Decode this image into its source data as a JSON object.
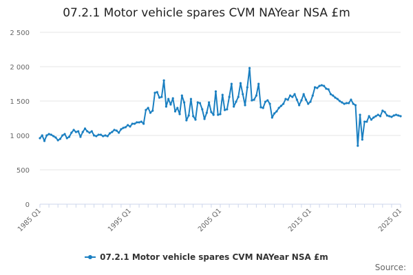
{
  "chart_data": {
    "type": "line",
    "title": "07.2.1 Motor vehicle spares CVM NAYear NSA £m",
    "xlabel": "",
    "ylabel": "",
    "ylim": [
      0,
      2500
    ],
    "y_ticks": [
      0,
      500,
      1000,
      1500,
      2000,
      2500
    ],
    "y_tick_labels": [
      "0",
      "500",
      "1 000",
      "1 500",
      "2 000",
      "2 500"
    ],
    "x_tick_labels": [
      "1985 Q1",
      "1995 Q1",
      "2005 Q1",
      "2015 Q1",
      "2025 Q1"
    ],
    "x_range": [
      "1985 Q1",
      "2025 Q1"
    ],
    "grid": "horizontal",
    "legend_position": "bottom",
    "colors": {
      "series": "#1a7fc1",
      "grid": "#e6e6e6",
      "axis": "#ccd6eb"
    },
    "series": [
      {
        "name": "07.2.1 Motor vehicle spares CVM NAYear NSA £m",
        "x": [
          "1985 Q1",
          "1985 Q2",
          "1985 Q3",
          "1985 Q4",
          "1986 Q1",
          "1986 Q2",
          "1986 Q3",
          "1986 Q4",
          "1987 Q1",
          "1987 Q2",
          "1987 Q3",
          "1987 Q4",
          "1988 Q1",
          "1988 Q2",
          "1988 Q3",
          "1988 Q4",
          "1989 Q1",
          "1989 Q2",
          "1989 Q3",
          "1989 Q4",
          "1990 Q1",
          "1990 Q2",
          "1990 Q3",
          "1990 Q4",
          "1991 Q1",
          "1991 Q2",
          "1991 Q3",
          "1991 Q4",
          "1992 Q1",
          "1992 Q2",
          "1992 Q3",
          "1992 Q4",
          "1993 Q1",
          "1993 Q2",
          "1993 Q3",
          "1993 Q4",
          "1994 Q1",
          "1994 Q2",
          "1994 Q3",
          "1994 Q4",
          "1995 Q1",
          "1995 Q2",
          "1995 Q3",
          "1995 Q4",
          "1996 Q1",
          "1996 Q2",
          "1996 Q3",
          "1996 Q4",
          "1997 Q1",
          "1997 Q2",
          "1997 Q3",
          "1997 Q4",
          "1998 Q1",
          "1998 Q2",
          "1998 Q3",
          "1998 Q4",
          "1999 Q1",
          "1999 Q2",
          "1999 Q3",
          "1999 Q4",
          "2000 Q1",
          "2000 Q2",
          "2000 Q3",
          "2000 Q4",
          "2001 Q1",
          "2001 Q2",
          "2001 Q3",
          "2001 Q4",
          "2002 Q1",
          "2002 Q2",
          "2002 Q3",
          "2002 Q4",
          "2003 Q1",
          "2003 Q2",
          "2003 Q3",
          "2003 Q4",
          "2004 Q1",
          "2004 Q2",
          "2004 Q3",
          "2004 Q4",
          "2005 Q1",
          "2005 Q2",
          "2005 Q3",
          "2005 Q4",
          "2006 Q1",
          "2006 Q2",
          "2006 Q3",
          "2006 Q4",
          "2007 Q1",
          "2007 Q2",
          "2007 Q3",
          "2007 Q4",
          "2008 Q1",
          "2008 Q2",
          "2008 Q3",
          "2008 Q4",
          "2009 Q1",
          "2009 Q2",
          "2009 Q3",
          "2009 Q4",
          "2010 Q1",
          "2010 Q2",
          "2010 Q3",
          "2010 Q4",
          "2011 Q1",
          "2011 Q2",
          "2011 Q3",
          "2011 Q4",
          "2012 Q1",
          "2012 Q2",
          "2012 Q3",
          "2012 Q4",
          "2013 Q1",
          "2013 Q2",
          "2013 Q3",
          "2013 Q4",
          "2014 Q1",
          "2014 Q2",
          "2014 Q3",
          "2014 Q4",
          "2015 Q1",
          "2015 Q2",
          "2015 Q3",
          "2015 Q4",
          "2016 Q1",
          "2016 Q2",
          "2016 Q3",
          "2016 Q4",
          "2017 Q1",
          "2017 Q2",
          "2017 Q3",
          "2017 Q4",
          "2018 Q1",
          "2018 Q2",
          "2018 Q3",
          "2018 Q4",
          "2019 Q1",
          "2019 Q2",
          "2019 Q3",
          "2019 Q4",
          "2020 Q1",
          "2020 Q2",
          "2020 Q3",
          "2020 Q4",
          "2021 Q1",
          "2021 Q2",
          "2021 Q3",
          "2021 Q4",
          "2022 Q1",
          "2022 Q2",
          "2022 Q3",
          "2022 Q4",
          "2023 Q1",
          "2023 Q2",
          "2023 Q3",
          "2023 Q4",
          "2024 Q1",
          "2024 Q2",
          "2024 Q3",
          "2024 Q4",
          "2025 Q1"
        ],
        "values": [
          960,
          1000,
          920,
          1000,
          1020,
          1010,
          990,
          970,
          930,
          950,
          1000,
          1020,
          960,
          980,
          1040,
          1080,
          1050,
          1060,
          980,
          1050,
          1100,
          1060,
          1040,
          1060,
          1000,
          990,
          1010,
          1010,
          990,
          1000,
          990,
          1030,
          1050,
          1080,
          1070,
          1040,
          1090,
          1110,
          1120,
          1150,
          1130,
          1170,
          1170,
          1190,
          1190,
          1200,
          1170,
          1370,
          1400,
          1330,
          1360,
          1620,
          1630,
          1550,
          1560,
          1800,
          1420,
          1530,
          1450,
          1540,
          1350,
          1400,
          1310,
          1580,
          1480,
          1220,
          1290,
          1530,
          1280,
          1230,
          1480,
          1470,
          1380,
          1240,
          1330,
          1480,
          1340,
          1300,
          1640,
          1300,
          1310,
          1590,
          1370,
          1380,
          1560,
          1750,
          1420,
          1490,
          1560,
          1760,
          1600,
          1440,
          1700,
          1980,
          1510,
          1520,
          1580,
          1750,
          1410,
          1400,
          1490,
          1510,
          1460,
          1260,
          1320,
          1350,
          1400,
          1430,
          1460,
          1530,
          1520,
          1580,
          1560,
          1600,
          1520,
          1440,
          1510,
          1600,
          1520,
          1460,
          1490,
          1580,
          1700,
          1690,
          1720,
          1730,
          1720,
          1680,
          1670,
          1600,
          1580,
          1550,
          1530,
          1500,
          1480,
          1460,
          1470,
          1470,
          1520,
          1460,
          1440,
          850,
          1300,
          940,
          1200,
          1200,
          1280,
          1230,
          1260,
          1280,
          1300,
          1280,
          1360,
          1340,
          1290,
          1280,
          1270,
          1290,
          1300,
          1290,
          1280
        ]
      }
    ]
  },
  "legend": {
    "label": "07.2.1 Motor vehicle spares CVM NAYear NSA £m"
  },
  "credit": "Source:"
}
